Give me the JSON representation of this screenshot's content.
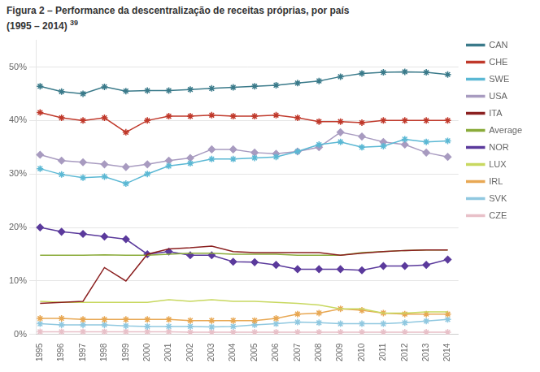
{
  "chart_data": {
    "type": "line",
    "title": "Figura 2 – Performance da descentralização de receitas próprias, por país",
    "subtitle": "(1995 – 2014)",
    "annotations": [
      "39"
    ],
    "x": [
      1995,
      1996,
      1997,
      1998,
      1999,
      2000,
      2001,
      2002,
      2003,
      2004,
      2005,
      2006,
      2007,
      2008,
      2009,
      2010,
      2011,
      2012,
      2013,
      2014
    ],
    "xlim": [
      1994.8,
      2014.5
    ],
    "xticks": [
      1995,
      1996,
      1997,
      1998,
      1999,
      2000,
      2001,
      2002,
      2003,
      2004,
      2005,
      2006,
      2007,
      2008,
      2009,
      2010,
      2011,
      2012,
      2013,
      2014
    ],
    "ylim": [
      0.0,
      0.55
    ],
    "yticks": [
      {
        "value": 0.0,
        "label": "0%"
      },
      {
        "value": 0.1,
        "label": "10%"
      },
      {
        "value": 0.2,
        "label": "20%"
      },
      {
        "value": 0.3,
        "label": "30%"
      },
      {
        "value": 0.4,
        "label": "40%"
      },
      {
        "value": 0.5,
        "label": "50%"
      }
    ],
    "grid": "y",
    "legend": "right",
    "series": [
      {
        "name": "CAN",
        "color": "#3A7A8A",
        "marker": "star",
        "values": [
          0.464,
          0.454,
          0.45,
          0.463,
          0.455,
          0.456,
          0.456,
          0.458,
          0.46,
          0.462,
          0.464,
          0.466,
          0.47,
          0.474,
          0.482,
          0.488,
          0.49,
          0.491,
          0.49,
          0.486
        ]
      },
      {
        "name": "CHE",
        "color": "#C0392B",
        "marker": "star",
        "values": [
          0.415,
          0.405,
          0.4,
          0.405,
          0.378,
          0.4,
          0.408,
          0.408,
          0.41,
          0.408,
          0.408,
          0.41,
          0.405,
          0.398,
          0.398,
          0.396,
          0.4,
          0.4,
          0.4,
          0.4
        ]
      },
      {
        "name": "SWE",
        "color": "#5BB8D4",
        "marker": "star",
        "values": [
          0.31,
          0.299,
          0.293,
          0.295,
          0.282,
          0.3,
          0.315,
          0.32,
          0.328,
          0.328,
          0.33,
          0.332,
          0.342,
          0.355,
          0.36,
          0.35,
          0.352,
          0.365,
          0.36,
          0.362
        ]
      },
      {
        "name": "USA",
        "color": "#A89BC0",
        "marker": "diamond",
        "values": [
          0.336,
          0.325,
          0.322,
          0.318,
          0.313,
          0.318,
          0.325,
          0.33,
          0.346,
          0.346,
          0.34,
          0.338,
          0.342,
          0.35,
          0.378,
          0.37,
          0.36,
          0.355,
          0.34,
          0.332
        ]
      },
      {
        "name": "ITA",
        "color": "#8B2020",
        "values": [
          0.058,
          0.06,
          0.062,
          0.125,
          0.1,
          0.15,
          0.16,
          0.162,
          0.165,
          0.155,
          0.153,
          0.153,
          0.153,
          0.153,
          0.148,
          0.152,
          0.155,
          0.157,
          0.158,
          0.158
        ]
      },
      {
        "name": "Average",
        "color": "#8AAB3A",
        "values": [
          0.148,
          0.148,
          0.148,
          0.149,
          0.148,
          0.148,
          0.15,
          0.152,
          0.152,
          0.15,
          0.15,
          0.15,
          0.148,
          0.148,
          0.148,
          0.153,
          0.155,
          0.157,
          0.158,
          0.158
        ]
      },
      {
        "name": "NOR",
        "color": "#5B3A9C",
        "marker": "diamond",
        "values": [
          0.2,
          0.192,
          0.188,
          0.183,
          0.178,
          0.15,
          0.155,
          0.148,
          0.148,
          0.136,
          0.135,
          0.13,
          0.122,
          0.122,
          0.122,
          0.12,
          0.128,
          0.128,
          0.13,
          0.14
        ]
      },
      {
        "name": "LUX",
        "color": "#C8D860",
        "values": [
          0.062,
          0.06,
          0.06,
          0.06,
          0.06,
          0.06,
          0.065,
          0.062,
          0.065,
          0.062,
          0.062,
          0.06,
          0.058,
          0.055,
          0.048,
          0.048,
          0.04,
          0.04,
          0.042,
          0.042
        ]
      },
      {
        "name": "IRL",
        "color": "#E8A854",
        "marker": "star",
        "values": [
          0.03,
          0.03,
          0.028,
          0.028,
          0.028,
          0.028,
          0.028,
          0.026,
          0.026,
          0.026,
          0.026,
          0.03,
          0.038,
          0.04,
          0.048,
          0.045,
          0.04,
          0.038,
          0.038,
          0.038
        ]
      },
      {
        "name": "SVK",
        "color": "#90C8E0",
        "marker": "star",
        "values": [
          0.02,
          0.018,
          0.018,
          0.018,
          0.016,
          0.015,
          0.015,
          0.015,
          0.014,
          0.015,
          0.018,
          0.02,
          0.023,
          0.022,
          0.02,
          0.02,
          0.02,
          0.022,
          0.025,
          0.028
        ]
      },
      {
        "name": "CZE",
        "color": "#E8C0C8",
        "marker": "star",
        "values": [
          0.005,
          0.005,
          0.005,
          0.005,
          0.005,
          0.005,
          0.005,
          0.004,
          0.004,
          0.004,
          0.004,
          0.004,
          0.004,
          0.004,
          0.004,
          0.004,
          0.004,
          0.004,
          0.004,
          0.004
        ]
      }
    ]
  }
}
